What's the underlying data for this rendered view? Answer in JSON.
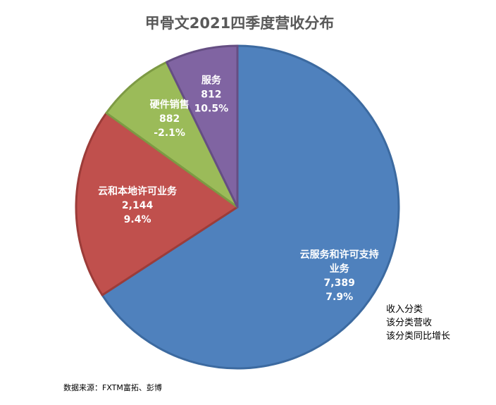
{
  "chart_data": {
    "type": "pie",
    "title": "甲骨文2021四季度营收分布",
    "slices": [
      {
        "name_lines": [
          "云服务和许可支持",
          "业务"
        ],
        "value": 7389,
        "value_label": "7,389",
        "growth": "7.9%",
        "color": "#4f81bd",
        "stroke": "#3c6aa0"
      },
      {
        "name_lines": [
          "云和本地许可业务"
        ],
        "value": 2144,
        "value_label": "2,144",
        "growth": "9.4%",
        "color": "#c0504d",
        "stroke": "#9c3c39"
      },
      {
        "name_lines": [
          "硬件销售"
        ],
        "value": 882,
        "value_label": "882",
        "growth": "-2.1%",
        "color": "#9bbb59",
        "stroke": "#7d9a44"
      },
      {
        "name_lines": [
          "服务"
        ],
        "value": 812,
        "value_label": "812",
        "growth": "10.5%",
        "color": "#8064a2",
        "stroke": "#654e83"
      }
    ]
  },
  "legend_note": [
    "收入分类",
    "该分类营收",
    "该分类同比增长"
  ],
  "source": "数据来源：FXTM富拓、彭博"
}
